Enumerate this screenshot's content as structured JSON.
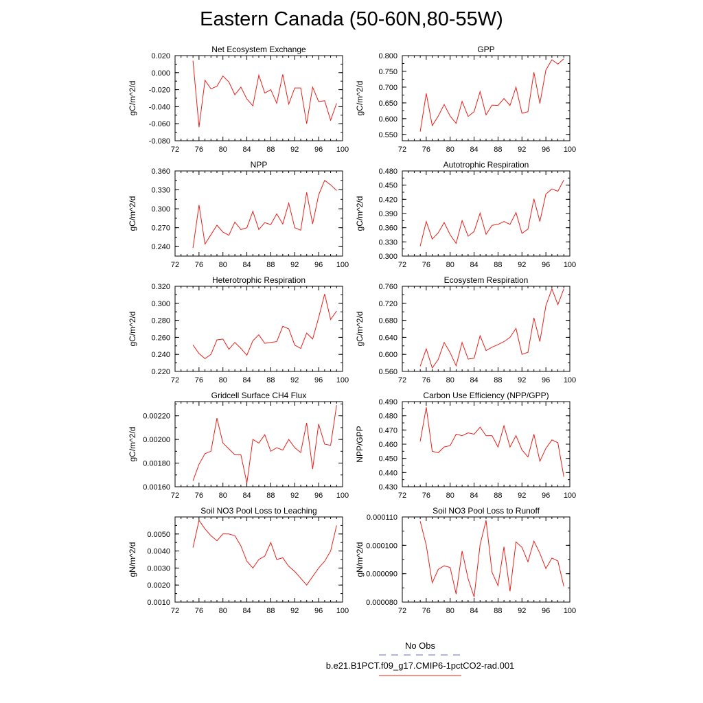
{
  "title": "Eastern Canada (50-60N,80-55W)",
  "colors": {
    "model_line": "#e8201a",
    "obs_line": "#6666dd",
    "axis": "#000000"
  },
  "legend": {
    "obs_label": "No Obs",
    "model_label": "b.e21.B1PCT.f09_g17.CMIP6-1pctCO2-rad.001"
  },
  "chart_data": [
    {
      "type": "line",
      "title": "Net Ecosystem Exchange",
      "ylabel": "gC/m^2/d",
      "xlim": [
        72,
        100
      ],
      "xticks": [
        "72",
        "76",
        "80",
        "84",
        "88",
        "92",
        "96",
        "100"
      ],
      "ylim": [
        -0.08,
        0.02
      ],
      "yticks": [
        "0.020",
        "0.000",
        "-0.020",
        "-0.040",
        "-0.060",
        "-0.080"
      ],
      "ytick_values": [
        0.02,
        0.0,
        -0.02,
        -0.04,
        -0.06,
        -0.08
      ],
      "x": [
        75,
        76,
        77,
        78,
        79,
        80,
        81,
        82,
        83,
        84,
        85,
        86,
        87,
        88,
        89,
        90,
        91,
        92,
        93,
        94,
        95,
        96,
        97,
        98,
        99
      ],
      "values": [
        0.014,
        -0.064,
        -0.009,
        -0.019,
        -0.016,
        -0.004,
        -0.011,
        -0.026,
        -0.017,
        -0.031,
        -0.039,
        -0.003,
        -0.024,
        -0.02,
        -0.036,
        -0.002,
        -0.037,
        -0.018,
        -0.018,
        -0.06,
        -0.017,
        -0.034,
        -0.033,
        -0.056,
        -0.036
      ]
    },
    {
      "type": "line",
      "title": "GPP",
      "ylabel": "gC/m^2/d",
      "xlim": [
        72,
        100
      ],
      "xticks": [
        "72",
        "76",
        "80",
        "84",
        "88",
        "92",
        "96",
        "100"
      ],
      "ylim": [
        0.53,
        0.8
      ],
      "yticks": [
        "0.800",
        "0.750",
        "0.700",
        "0.650",
        "0.600",
        "0.550"
      ],
      "ytick_values": [
        0.8,
        0.75,
        0.7,
        0.65,
        0.6,
        0.55
      ],
      "x": [
        75,
        76,
        77,
        78,
        79,
        80,
        81,
        82,
        83,
        84,
        85,
        86,
        87,
        88,
        89,
        90,
        91,
        92,
        93,
        94,
        95,
        96,
        97,
        98,
        99
      ],
      "values": [
        0.559,
        0.68,
        0.578,
        0.608,
        0.645,
        0.608,
        0.585,
        0.655,
        0.607,
        0.622,
        0.686,
        0.612,
        0.643,
        0.642,
        0.664,
        0.642,
        0.7,
        0.617,
        0.622,
        0.747,
        0.648,
        0.754,
        0.787,
        0.773,
        0.79
      ]
    },
    {
      "type": "line",
      "title": "NPP",
      "ylabel": "gC/m^2/d",
      "xlim": [
        72,
        100
      ],
      "xticks": [
        "72",
        "76",
        "80",
        "84",
        "88",
        "92",
        "96",
        "100"
      ],
      "ylim": [
        0.225,
        0.36
      ],
      "yticks": [
        "0.360",
        "0.330",
        "0.300",
        "0.270",
        "0.240"
      ],
      "ytick_values": [
        0.36,
        0.33,
        0.3,
        0.27,
        0.24
      ],
      "x": [
        75,
        76,
        77,
        78,
        79,
        80,
        81,
        82,
        83,
        84,
        85,
        86,
        87,
        88,
        89,
        90,
        91,
        92,
        93,
        94,
        95,
        96,
        97,
        98,
        99
      ],
      "values": [
        0.238,
        0.306,
        0.244,
        0.259,
        0.274,
        0.263,
        0.258,
        0.279,
        0.267,
        0.27,
        0.296,
        0.267,
        0.278,
        0.275,
        0.292,
        0.276,
        0.309,
        0.27,
        0.266,
        0.326,
        0.276,
        0.322,
        0.345,
        0.338,
        0.329
      ]
    },
    {
      "type": "line",
      "title": "Autotrophic Respiration",
      "ylabel": "gC/m^2/d",
      "xlim": [
        72,
        100
      ],
      "xticks": [
        "72",
        "76",
        "80",
        "84",
        "88",
        "92",
        "96",
        "100"
      ],
      "ylim": [
        0.3,
        0.48
      ],
      "yticks": [
        "0.480",
        "0.450",
        "0.420",
        "0.390",
        "0.360",
        "0.330",
        "0.300"
      ],
      "ytick_values": [
        0.48,
        0.45,
        0.42,
        0.39,
        0.36,
        0.33,
        0.3
      ],
      "x": [
        75,
        76,
        77,
        78,
        79,
        80,
        81,
        82,
        83,
        84,
        85,
        86,
        87,
        88,
        89,
        90,
        91,
        92,
        93,
        94,
        95,
        96,
        97,
        98,
        99
      ],
      "values": [
        0.321,
        0.373,
        0.336,
        0.349,
        0.371,
        0.345,
        0.327,
        0.375,
        0.342,
        0.352,
        0.391,
        0.346,
        0.365,
        0.367,
        0.373,
        0.367,
        0.392,
        0.348,
        0.357,
        0.421,
        0.373,
        0.431,
        0.442,
        0.437,
        0.461
      ]
    },
    {
      "type": "line",
      "title": "Heterotrophic Respiration",
      "ylabel": "gC/m^2/d",
      "xlim": [
        72,
        100
      ],
      "xticks": [
        "72",
        "76",
        "80",
        "84",
        "88",
        "92",
        "96",
        "100"
      ],
      "ylim": [
        0.22,
        0.32
      ],
      "yticks": [
        "0.320",
        "0.300",
        "0.280",
        "0.260",
        "0.240",
        "0.220"
      ],
      "ytick_values": [
        0.32,
        0.3,
        0.28,
        0.26,
        0.24,
        0.22
      ],
      "x": [
        75,
        76,
        77,
        78,
        79,
        80,
        81,
        82,
        83,
        84,
        85,
        86,
        87,
        88,
        89,
        90,
        91,
        92,
        93,
        94,
        95,
        96,
        97,
        98,
        99
      ],
      "values": [
        0.251,
        0.241,
        0.235,
        0.24,
        0.257,
        0.258,
        0.246,
        0.254,
        0.247,
        0.239,
        0.256,
        0.263,
        0.253,
        0.254,
        0.255,
        0.273,
        0.27,
        0.251,
        0.247,
        0.265,
        0.258,
        0.283,
        0.311,
        0.281,
        0.291
      ]
    },
    {
      "type": "line",
      "title": "Ecosystem Respiration",
      "ylabel": "gC/m^2/d",
      "xlim": [
        72,
        100
      ],
      "xticks": [
        "72",
        "76",
        "80",
        "84",
        "88",
        "92",
        "96",
        "100"
      ],
      "ylim": [
        0.56,
        0.76
      ],
      "yticks": [
        "0.760",
        "0.720",
        "0.680",
        "0.640",
        "0.600",
        "0.560"
      ],
      "ytick_values": [
        0.76,
        0.72,
        0.68,
        0.64,
        0.6,
        0.56
      ],
      "x": [
        75,
        76,
        77,
        78,
        79,
        80,
        81,
        82,
        83,
        84,
        85,
        86,
        87,
        88,
        89,
        90,
        91,
        92,
        93,
        94,
        95,
        96,
        97,
        98,
        99
      ],
      "values": [
        0.572,
        0.613,
        0.568,
        0.588,
        0.628,
        0.604,
        0.573,
        0.628,
        0.589,
        0.591,
        0.644,
        0.609,
        0.617,
        0.623,
        0.63,
        0.64,
        0.661,
        0.6,
        0.605,
        0.686,
        0.63,
        0.714,
        0.754,
        0.717,
        0.754
      ]
    },
    {
      "type": "line",
      "title": "Gridcell Surface CH4 Flux",
      "ylabel": "gC/m^2/d",
      "xlim": [
        72,
        100
      ],
      "xticks": [
        "72",
        "76",
        "80",
        "84",
        "88",
        "92",
        "96",
        "100"
      ],
      "ylim": [
        0.0016,
        0.00232
      ],
      "yticks": [
        "0.00220",
        "0.00200",
        "0.00180",
        "0.00160"
      ],
      "ytick_values": [
        0.0022,
        0.002,
        0.0018,
        0.0016
      ],
      "x": [
        75,
        76,
        77,
        78,
        79,
        80,
        81,
        82,
        83,
        84,
        85,
        86,
        87,
        88,
        89,
        90,
        91,
        92,
        93,
        94,
        95,
        96,
        97,
        98,
        99
      ],
      "values": [
        0.00165,
        0.00179,
        0.00188,
        0.0019,
        0.00218,
        0.00197,
        0.00192,
        0.00187,
        0.00187,
        0.00163,
        0.002,
        0.00197,
        0.00204,
        0.0019,
        0.00193,
        0.00191,
        0.002,
        0.00193,
        0.00189,
        0.00214,
        0.00175,
        0.00213,
        0.00196,
        0.00195,
        0.00229
      ]
    },
    {
      "type": "line",
      "title": "Carbon Use Efficiency (NPP/GPP)",
      "ylabel": "NPP/GPP",
      "xlim": [
        72,
        100
      ],
      "xticks": [
        "72",
        "76",
        "80",
        "84",
        "88",
        "92",
        "96",
        "100"
      ],
      "ylim": [
        0.43,
        0.49
      ],
      "yticks": [
        "0.490",
        "0.480",
        "0.470",
        "0.460",
        "0.450",
        "0.440",
        "0.430"
      ],
      "ytick_values": [
        0.49,
        0.48,
        0.47,
        0.46,
        0.45,
        0.44,
        0.43
      ],
      "x": [
        75,
        76,
        77,
        78,
        79,
        80,
        81,
        82,
        83,
        84,
        85,
        86,
        87,
        88,
        89,
        90,
        91,
        92,
        93,
        94,
        95,
        96,
        97,
        98,
        99
      ],
      "values": [
        0.462,
        0.486,
        0.455,
        0.454,
        0.458,
        0.459,
        0.467,
        0.466,
        0.468,
        0.467,
        0.472,
        0.466,
        0.466,
        0.458,
        0.473,
        0.458,
        0.466,
        0.456,
        0.451,
        0.467,
        0.448,
        0.457,
        0.463,
        0.461,
        0.437
      ]
    },
    {
      "type": "line",
      "title": "Soil NO3 Pool Loss to Leaching",
      "ylabel": "gN/m^2/d",
      "xlim": [
        72,
        100
      ],
      "xticks": [
        "72",
        "76",
        "80",
        "84",
        "88",
        "92",
        "96",
        "100"
      ],
      "ylim": [
        0.001,
        0.006
      ],
      "yticks": [
        "0.0050",
        "0.0040",
        "0.0030",
        "0.0020",
        "0.0010"
      ],
      "ytick_values": [
        0.005,
        0.004,
        0.003,
        0.002,
        0.001
      ],
      "x": [
        75,
        76,
        77,
        78,
        79,
        80,
        81,
        82,
        83,
        84,
        85,
        86,
        87,
        88,
        89,
        90,
        91,
        92,
        93,
        94,
        95,
        96,
        97,
        98,
        99
      ],
      "values": [
        0.0042,
        0.0058,
        0.0053,
        0.0049,
        0.0046,
        0.005,
        0.005,
        0.0049,
        0.0043,
        0.0034,
        0.003,
        0.0035,
        0.0037,
        0.0045,
        0.0035,
        0.0036,
        0.0031,
        0.0028,
        0.0024,
        0.002,
        0.0025,
        0.003,
        0.0034,
        0.004,
        0.0055
      ]
    },
    {
      "type": "line",
      "title": "Soil NO3 Pool Loss to Runoff",
      "ylabel": "gN/m^2/d",
      "xlim": [
        72,
        100
      ],
      "xticks": [
        "72",
        "76",
        "80",
        "84",
        "88",
        "92",
        "96",
        "100"
      ],
      "ylim": [
        8e-05,
        0.00011
      ],
      "yticks": [
        "0.000110",
        "0.000100",
        "0.000090",
        "0.000080"
      ],
      "ytick_values": [
        0.00011,
        0.0001,
        9e-05,
        8e-05
      ],
      "x": [
        75,
        76,
        77,
        78,
        79,
        80,
        81,
        82,
        83,
        84,
        85,
        86,
        87,
        88,
        89,
        90,
        91,
        92,
        93,
        94,
        95,
        96,
        97,
        98,
        99
      ],
      "values": [
        0.0001085,
        0.0001,
        8.68e-05,
        9.15e-05,
        9.28e-05,
        9.22e-05,
        8.28e-05,
        9.8e-05,
        8.82e-05,
        8.18e-05,
        0.0001002,
        0.0001088,
        9.05e-05,
        8.58e-05,
        9.95e-05,
        8.38e-05,
        0.0001012,
        9.93e-05,
        9.42e-05,
        0.0001015,
        9.72e-05,
        9.18e-05,
        9.55e-05,
        9.45e-05,
        8.55e-05
      ]
    }
  ]
}
